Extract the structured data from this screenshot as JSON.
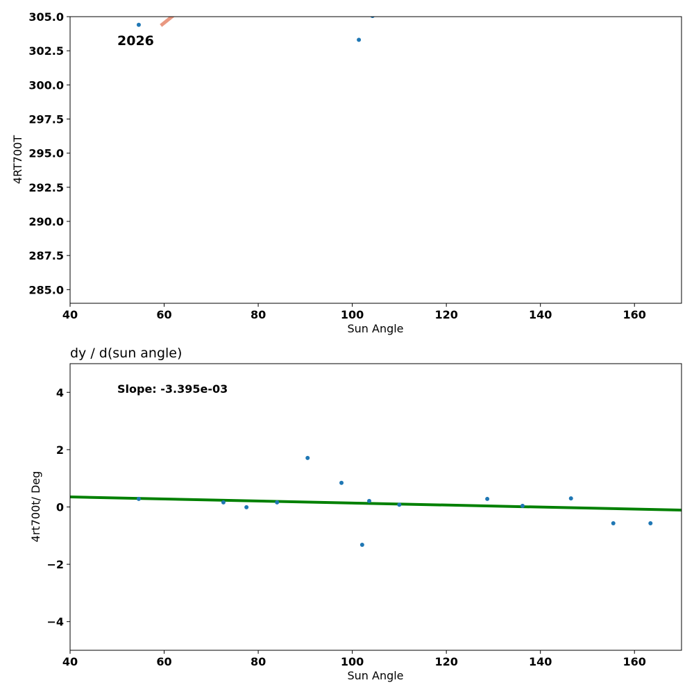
{
  "chart_data": [
    {
      "type": "scatter",
      "title": "",
      "xlabel": "Sun Angle",
      "ylabel": "4RT700T",
      "xlim": [
        40,
        170
      ],
      "ylim": [
        284.0,
        305.0
      ],
      "xticks": [
        "40",
        "60",
        "80",
        "100",
        "120",
        "140",
        "160"
      ],
      "xtick_values": [
        40,
        60,
        80,
        100,
        120,
        140,
        160
      ],
      "yticks": [
        "285.0",
        "287.5",
        "290.0",
        "292.5",
        "295.0",
        "297.5",
        "300.0",
        "302.5",
        "305.0"
      ],
      "ytick_values": [
        285.0,
        287.5,
        290.0,
        292.5,
        295.0,
        297.5,
        300.0,
        302.5,
        305.0
      ],
      "annotation": "2026",
      "points": {
        "x": [
          54.6,
          101.4,
          104.3
        ],
        "y": [
          304.4,
          303.3,
          305.05
        ]
      },
      "trend_line": {
        "x": [
          59.3,
          66.0
        ],
        "y": [
          304.35,
          306.2
        ],
        "color": "#e8927a"
      },
      "point_color": "#1f77b4",
      "grid": false
    },
    {
      "type": "scatter",
      "title": "dy / d(sun angle)",
      "xlabel": "Sun Angle",
      "ylabel": "4rt700t/ Deg",
      "xlim": [
        40,
        170
      ],
      "ylim": [
        -5,
        5
      ],
      "xticks": [
        "40",
        "60",
        "80",
        "100",
        "120",
        "140",
        "160"
      ],
      "xtick_values": [
        40,
        60,
        80,
        100,
        120,
        140,
        160
      ],
      "yticks": [
        "−4",
        "−2",
        "0",
        "2",
        "4"
      ],
      "ytick_values": [
        -4,
        -2,
        0,
        2,
        4
      ],
      "annotation": "Slope: -3.395e-03",
      "points": {
        "x": [
          54.6,
          72.6,
          77.5,
          84.0,
          90.5,
          97.7,
          102.1,
          103.6,
          110.0,
          128.7,
          136.2,
          146.5,
          155.5,
          163.4
        ],
        "y": [
          0.28,
          0.16,
          -0.01,
          0.16,
          1.71,
          0.84,
          -1.32,
          0.21,
          0.08,
          0.28,
          0.04,
          0.3,
          -0.57,
          -0.57
        ]
      },
      "trend_line": {
        "x": [
          40,
          170
        ],
        "y": [
          0.35,
          -0.11
        ],
        "color": "#008000"
      },
      "point_color": "#1f77b4",
      "grid": false
    }
  ]
}
